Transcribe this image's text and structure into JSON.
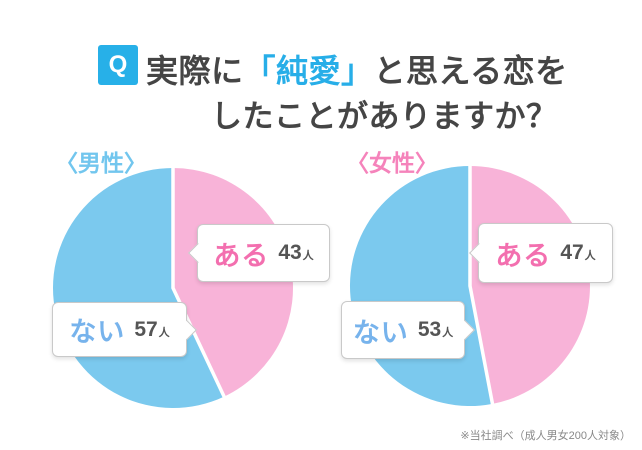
{
  "header": {
    "badge": "Q",
    "badge_color": "#27b0e8",
    "title_line1_prefix": "実際に",
    "title_line1_highlight": "「純愛」",
    "title_line1_suffix": "と思える恋を",
    "title_line2": "したことがありますか？",
    "highlight_color": "#27aee8",
    "title_color": "#454545"
  },
  "chart_data": [
    {
      "type": "pie",
      "title": "〈男性〉",
      "title_color": "#72c6ee",
      "labels": [
        "ある",
        "ない"
      ],
      "values": [
        43,
        57
      ],
      "unit": "人",
      "colors": [
        "#f8b3d8",
        "#7bc9ee"
      ],
      "label_text_colors": [
        "#f36faf",
        "#77b3ec"
      ],
      "divider_color": "#ffffff",
      "start_angle": "top",
      "direction": "clockwise"
    },
    {
      "type": "pie",
      "title": "〈女性〉",
      "title_color": "#f583bb",
      "labels": [
        "ある",
        "ない"
      ],
      "values": [
        47,
        53
      ],
      "unit": "人",
      "colors": [
        "#f8b3d8",
        "#7bc9ee"
      ],
      "label_text_colors": [
        "#f36faf",
        "#77b3ec"
      ],
      "divider_color": "#ffffff",
      "start_angle": "top",
      "direction": "clockwise"
    }
  ],
  "footnote": "※当社調べ（成人男女200人対象）"
}
